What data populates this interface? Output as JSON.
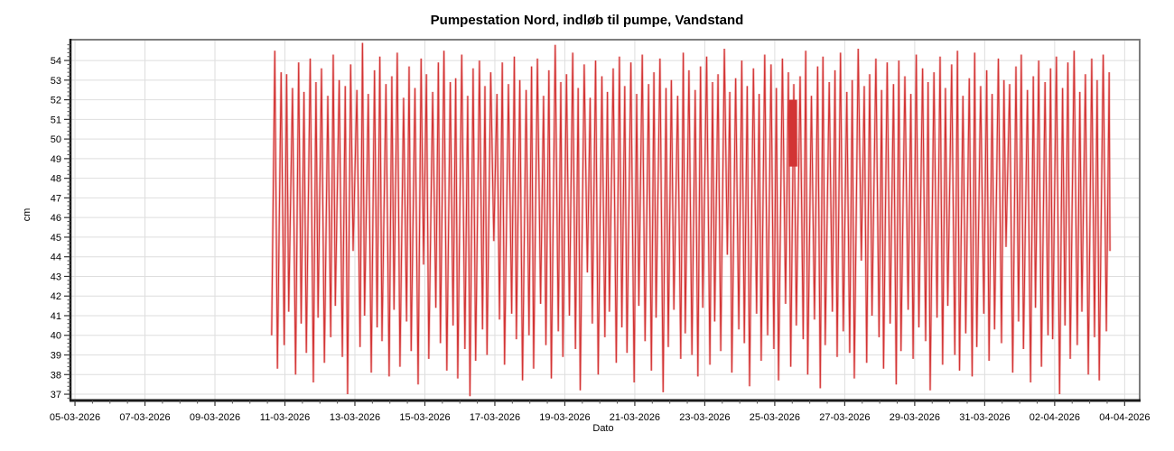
{
  "window": {
    "background": "#ffffff"
  },
  "chart_data": {
    "type": "line",
    "title": "Pumpestation Nord, indløb til pumpe, Vandstand",
    "xlabel": "Dato",
    "ylabel": "cm",
    "grid": true,
    "legend": "none",
    "colors": {
      "line": "#d23434",
      "line_halo": "rgba(224,64,64,0.36)",
      "grid": "#dedede",
      "frame": "#7d7d7d",
      "axis": "#1a1a1a",
      "plot_bg": "#ffffff"
    },
    "x_tick_labels": [
      "05-03-2026",
      "07-03-2026",
      "09-03-2026",
      "11-03-2026",
      "13-03-2026",
      "15-03-2026",
      "17-03-2026",
      "19-03-2026",
      "21-03-2026",
      "23-03-2026",
      "25-03-2026",
      "27-03-2026",
      "29-03-2026",
      "31-03-2026",
      "02-04-2026",
      "04-04-2026"
    ],
    "x_tick_days": [
      0,
      2,
      4,
      6,
      8,
      10,
      12,
      14,
      16,
      18,
      20,
      22,
      24,
      26,
      28,
      30
    ],
    "x_minor_step_days": 0.5,
    "xlim_days": [
      -0.13,
      30.43
    ],
    "y_ticks": [
      37,
      38,
      39,
      40,
      41,
      42,
      43,
      44,
      45,
      46,
      47,
      48,
      49,
      50,
      51,
      52,
      53,
      54
    ],
    "y_minor_step": 0.2,
    "ylim": [
      36.68,
      55.06
    ],
    "series": [
      {
        "name": "Vandstand",
        "shape": "pump-cycle zigzag: water level rises to a peak then is pumped down to a trough, ~6 cycles per day",
        "start_day": 5.62,
        "end_day": 29.58,
        "end_value": 44.3,
        "rise_fraction": 0.55,
        "cycle_hours_base": 4.0,
        "cycle_hours_jitter_amp": 0.9,
        "cycle_hours_jitter_freq": 2.399,
        "cycles_trough_peak": [
          [
            40.0,
            54.5
          ],
          [
            38.3,
            53.4
          ],
          [
            39.5,
            53.3
          ],
          [
            41.2,
            52.6
          ],
          [
            38.0,
            53.9
          ],
          [
            40.6,
            52.4
          ],
          [
            39.1,
            54.1
          ],
          [
            37.6,
            52.9
          ],
          [
            40.9,
            53.6
          ],
          [
            38.6,
            52.2
          ],
          [
            39.9,
            54.3
          ],
          [
            41.5,
            53.0
          ],
          [
            38.9,
            52.7
          ],
          [
            37.0,
            53.8
          ],
          [
            44.3,
            52.5
          ],
          [
            39.4,
            54.9
          ],
          [
            41.0,
            52.3
          ],
          [
            38.1,
            53.5
          ],
          [
            40.4,
            54.2
          ],
          [
            39.7,
            52.8
          ],
          [
            37.9,
            53.2
          ],
          [
            41.3,
            54.4
          ],
          [
            38.4,
            52.1
          ],
          [
            40.7,
            53.7
          ],
          [
            39.2,
            52.6
          ],
          [
            37.5,
            54.1
          ],
          [
            43.6,
            53.3
          ],
          [
            38.8,
            52.4
          ],
          [
            41.4,
            53.9
          ],
          [
            39.6,
            54.5
          ],
          [
            38.2,
            52.9
          ],
          [
            40.5,
            53.1
          ],
          [
            37.8,
            54.3
          ],
          [
            39.3,
            52.2
          ],
          [
            36.9,
            53.6
          ],
          [
            38.7,
            54.0
          ],
          [
            40.3,
            52.7
          ],
          [
            39.0,
            53.4
          ],
          [
            44.8,
            52.3
          ],
          [
            40.8,
            53.9
          ],
          [
            38.5,
            52.8
          ],
          [
            41.1,
            54.2
          ],
          [
            39.8,
            53.0
          ],
          [
            37.7,
            52.5
          ],
          [
            40.0,
            53.7
          ],
          [
            38.3,
            54.1
          ],
          [
            41.6,
            52.2
          ],
          [
            39.5,
            53.5
          ],
          [
            37.8,
            54.8
          ],
          [
            40.2,
            52.9
          ],
          [
            38.9,
            53.3
          ],
          [
            41.0,
            54.4
          ],
          [
            39.3,
            52.6
          ],
          [
            37.2,
            53.8
          ],
          [
            43.2,
            52.1
          ],
          [
            40.6,
            54.0
          ],
          [
            38.0,
            53.2
          ],
          [
            39.9,
            52.4
          ],
          [
            41.2,
            53.6
          ],
          [
            38.6,
            54.2
          ],
          [
            40.4,
            52.7
          ],
          [
            39.1,
            53.9
          ],
          [
            37.6,
            52.3
          ],
          [
            41.5,
            54.3
          ],
          [
            39.7,
            52.8
          ],
          [
            38.2,
            53.4
          ],
          [
            40.9,
            54.1
          ],
          [
            37.1,
            52.6
          ],
          [
            39.4,
            53.0
          ],
          [
            41.3,
            52.2
          ],
          [
            38.8,
            54.4
          ],
          [
            40.1,
            53.5
          ],
          [
            39.0,
            52.5
          ],
          [
            37.9,
            53.7
          ],
          [
            41.4,
            54.2
          ],
          [
            38.5,
            52.9
          ],
          [
            40.7,
            53.3
          ],
          [
            39.2,
            54.6
          ],
          [
            44.1,
            52.4
          ],
          [
            38.1,
            53.1
          ],
          [
            40.3,
            54.0
          ],
          [
            39.6,
            52.7
          ],
          [
            37.4,
            53.6
          ],
          [
            41.1,
            52.3
          ],
          [
            38.7,
            54.3
          ],
          [
            40.0,
            53.8
          ],
          [
            39.3,
            52.6
          ],
          [
            37.7,
            54.1
          ],
          [
            41.6,
            53.4
          ],
          [
            38.4,
            52.8
          ],
          [
            40.5,
            53.2
          ],
          [
            39.8,
            54.5
          ],
          [
            38.0,
            52.2
          ],
          [
            40.8,
            53.7
          ],
          [
            37.3,
            54.2
          ],
          [
            39.5,
            52.9
          ],
          [
            41.2,
            53.5
          ],
          [
            38.9,
            54.4
          ],
          [
            40.2,
            52.4
          ],
          [
            39.1,
            53.0
          ],
          [
            37.8,
            54.6
          ],
          [
            43.8,
            52.7
          ],
          [
            38.6,
            53.3
          ],
          [
            41.0,
            54.1
          ],
          [
            39.9,
            52.5
          ],
          [
            38.3,
            53.9
          ],
          [
            40.6,
            52.8
          ],
          [
            37.5,
            54.0
          ],
          [
            39.2,
            53.2
          ],
          [
            41.3,
            52.3
          ],
          [
            38.8,
            54.3
          ],
          [
            40.4,
            53.6
          ],
          [
            39.7,
            52.9
          ],
          [
            37.2,
            53.4
          ],
          [
            40.9,
            54.2
          ],
          [
            38.5,
            52.6
          ],
          [
            41.5,
            53.8
          ],
          [
            39.0,
            54.5
          ],
          [
            38.2,
            52.2
          ],
          [
            40.1,
            53.1
          ],
          [
            37.9,
            54.4
          ],
          [
            39.4,
            52.7
          ],
          [
            41.1,
            53.5
          ],
          [
            38.7,
            52.3
          ],
          [
            40.3,
            54.1
          ],
          [
            39.6,
            53.0
          ],
          [
            44.5,
            52.8
          ],
          [
            38.1,
            53.7
          ],
          [
            40.7,
            54.3
          ],
          [
            39.3,
            52.5
          ],
          [
            37.6,
            53.2
          ],
          [
            41.4,
            54.0
          ],
          [
            38.4,
            52.9
          ],
          [
            40.0,
            53.6
          ],
          [
            39.8,
            54.2
          ],
          [
            37.0,
            52.6
          ],
          [
            40.5,
            53.9
          ],
          [
            38.8,
            54.5
          ],
          [
            39.5,
            52.4
          ],
          [
            41.2,
            53.3
          ],
          [
            38.0,
            54.1
          ],
          [
            39.9,
            53.0
          ],
          [
            37.7,
            54.3
          ],
          [
            40.2,
            53.4
          ]
        ],
        "bursts": [
          {
            "day": 20.42,
            "duration_hours": 5,
            "low": 48.6,
            "high": 52.0,
            "n_cycles": 12
          }
        ]
      }
    ]
  }
}
